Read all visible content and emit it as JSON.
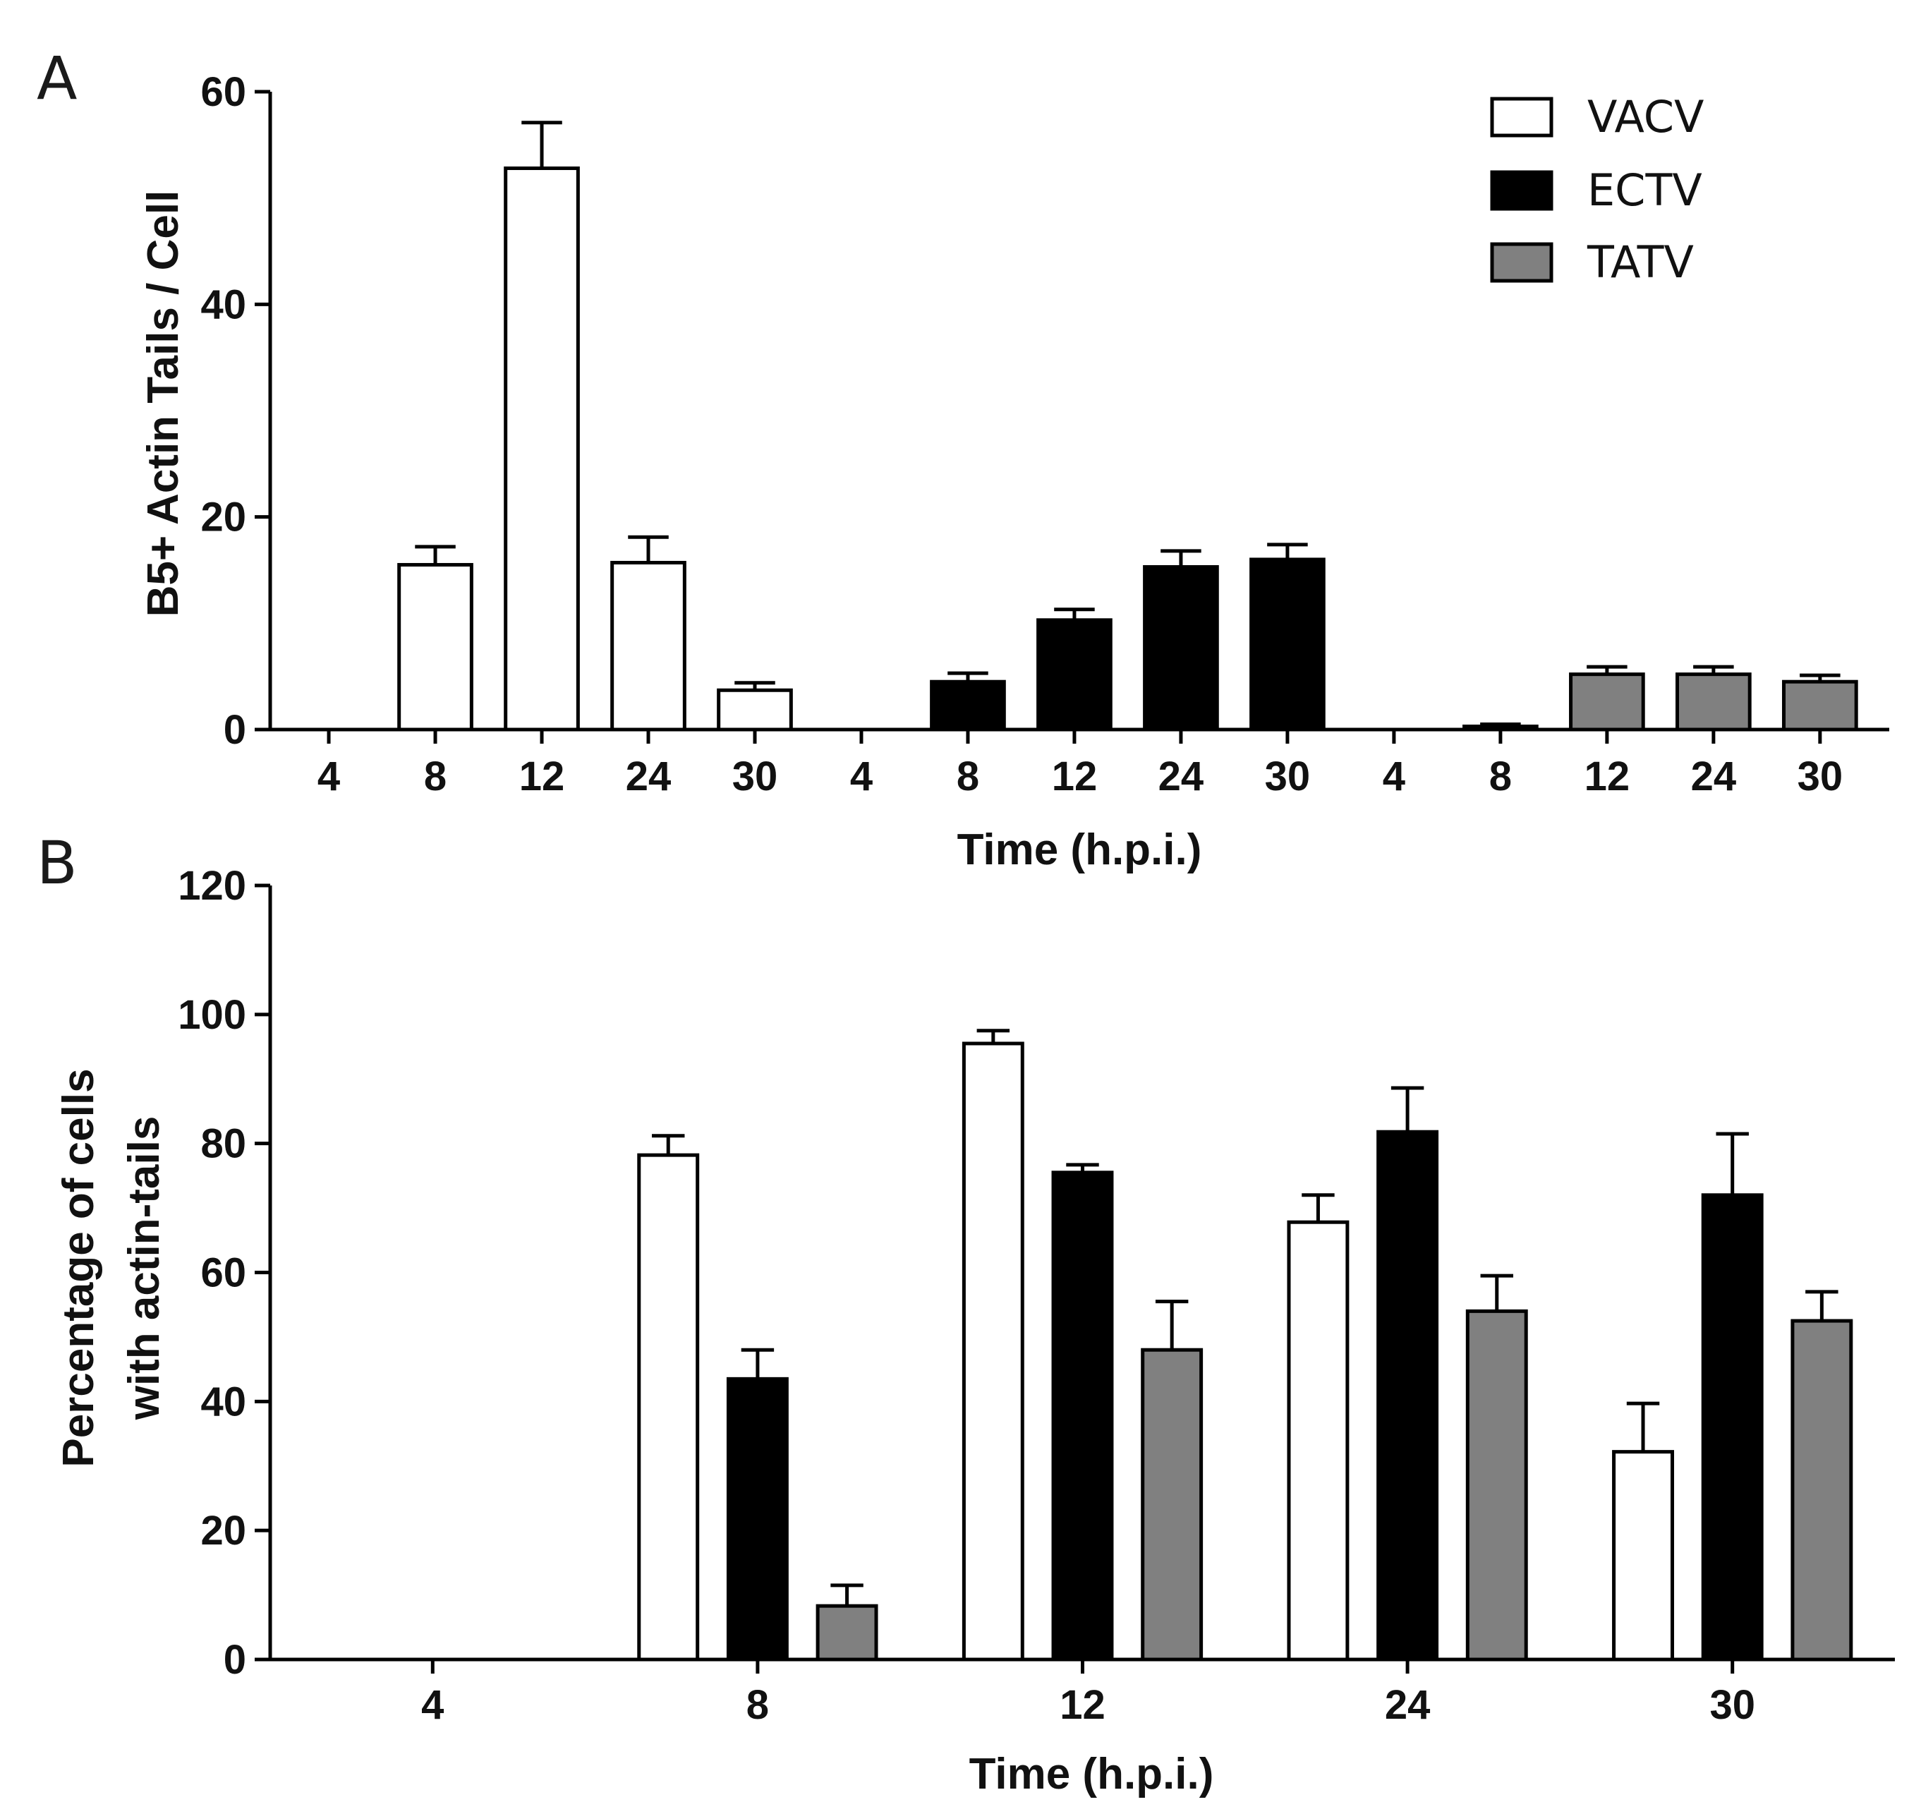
{
  "figure": {
    "panels": [
      "A",
      "B"
    ]
  },
  "colors": {
    "VACV": "#ffffff",
    "ECTV": "#000000",
    "TATV": "#808080",
    "outline": "#000000"
  },
  "legend": [
    {
      "name": "VACV",
      "swatch": "white"
    },
    {
      "name": "ECTV",
      "swatch": "black"
    },
    {
      "name": "TATV",
      "swatch": "gray"
    }
  ],
  "chart_data": [
    {
      "panel": "A",
      "type": "bar",
      "grouping": "sequential by virus",
      "ylabel": "B5+  Actin Tails / Cell",
      "xlabel": "Time (h.p.i.)",
      "ylim": [
        0,
        60
      ],
      "yticks": [
        0,
        20,
        40,
        60
      ],
      "categories": [
        "4",
        "8",
        "12",
        "24",
        "30",
        "4",
        "8",
        "12",
        "24",
        "30",
        "4",
        "8",
        "12",
        "24",
        "30"
      ],
      "legend_position": "top-right",
      "series": [
        {
          "name": "VACV",
          "x": [
            "4",
            "8",
            "12",
            "24",
            "30"
          ],
          "values": [
            0,
            15.5,
            52.8,
            15.7,
            3.7
          ],
          "errors": [
            0,
            1.7,
            4.3,
            2.4,
            0.7
          ]
        },
        {
          "name": "ECTV",
          "x": [
            "4",
            "8",
            "12",
            "24",
            "30"
          ],
          "values": [
            0,
            4.5,
            10.3,
            15.3,
            16.0
          ],
          "errors": [
            0,
            0.8,
            1.0,
            1.5,
            1.4
          ]
        },
        {
          "name": "TATV",
          "x": [
            "4",
            "8",
            "12",
            "24",
            "30"
          ],
          "values": [
            0,
            0.3,
            5.2,
            5.2,
            4.5
          ],
          "errors": [
            0,
            0.2,
            0.7,
            0.7,
            0.6
          ]
        }
      ]
    },
    {
      "panel": "B",
      "type": "bar",
      "grouping": "grouped by time",
      "ylabel_lines": [
        "Percentage of cells",
        "with actin-tails"
      ],
      "xlabel": "Time (h.p.i.)",
      "ylim": [
        0,
        120
      ],
      "yticks": [
        0,
        20,
        40,
        60,
        80,
        100,
        120
      ],
      "categories": [
        "4",
        "8",
        "12",
        "24",
        "30"
      ],
      "series": [
        {
          "name": "VACV",
          "values": [
            0,
            78.2,
            95.5,
            67.8,
            32.2
          ],
          "errors": [
            0,
            3.0,
            2.0,
            4.2,
            7.5
          ]
        },
        {
          "name": "ECTV",
          "values": [
            0,
            43.5,
            75.5,
            81.8,
            72.0
          ],
          "errors": [
            0,
            4.5,
            1.2,
            6.8,
            9.5
          ]
        },
        {
          "name": "TATV",
          "values": [
            0,
            8.3,
            48.0,
            54.0,
            52.5
          ],
          "errors": [
            0,
            3.2,
            7.5,
            5.5,
            4.5
          ]
        }
      ]
    }
  ]
}
